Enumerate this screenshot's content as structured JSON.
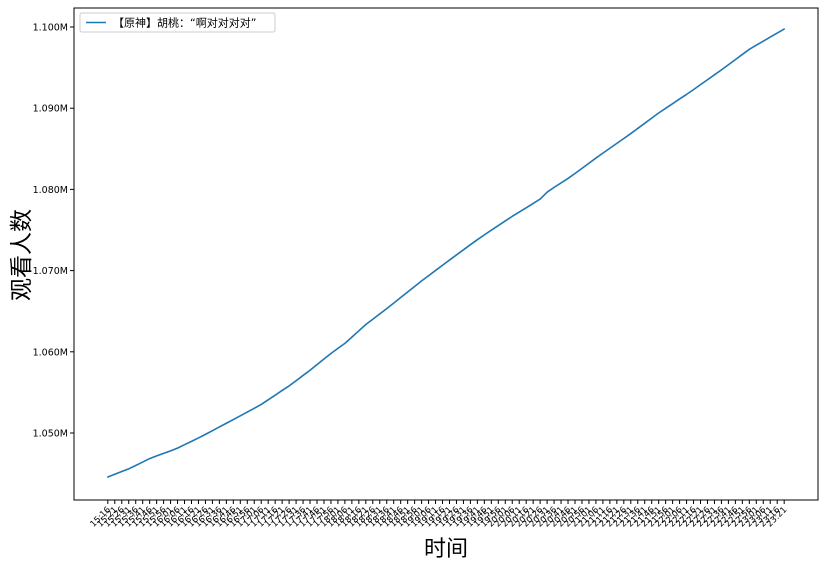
{
  "chart_data": {
    "type": "line",
    "title": "",
    "xlabel": "时间",
    "ylabel": "观看人数",
    "legend_placement": "upper-left",
    "grid": false,
    "ylim": [
      1041750,
      1102340
    ],
    "yticks": [
      1050000,
      1060000,
      1070000,
      1080000,
      1090000,
      1100000
    ],
    "ytick_labels": [
      "1.050M",
      "1.060M",
      "1.070M",
      "1.080M",
      "1.090M",
      "1.100M"
    ],
    "x": [
      "15:16",
      "15:21",
      "15:26",
      "15:31",
      "15:36",
      "15:41",
      "15:46",
      "15:51",
      "15:56",
      "16:01",
      "16:06",
      "16:11",
      "16:16",
      "16:21",
      "16:26",
      "16:31",
      "16:36",
      "16:41",
      "16:46",
      "16:51",
      "16:56",
      "17:01",
      "17:06",
      "17:11",
      "17:16",
      "17:21",
      "17:26",
      "17:31",
      "17:36",
      "17:41",
      "17:46",
      "17:51",
      "17:56",
      "18:01",
      "18:06",
      "18:11",
      "18:16",
      "18:21",
      "18:26",
      "18:31",
      "18:36",
      "18:41",
      "18:46",
      "18:51",
      "18:56",
      "19:01",
      "19:06",
      "19:11",
      "19:16",
      "19:21",
      "19:26",
      "19:31",
      "19:36",
      "19:41",
      "19:46",
      "19:51",
      "19:56",
      "20:01",
      "20:06",
      "20:11",
      "20:16",
      "20:21",
      "20:26",
      "20:31",
      "20:36",
      "20:41",
      "20:46",
      "20:51",
      "20:56",
      "21:01",
      "21:06",
      "21:11",
      "21:16",
      "21:21",
      "21:26",
      "21:31",
      "21:36",
      "21:41",
      "21:46",
      "21:51",
      "21:56",
      "22:01",
      "22:06",
      "22:11",
      "22:16",
      "22:21",
      "22:26",
      "22:31",
      "22:36",
      "22:41",
      "22:46",
      "22:51",
      "22:56",
      "23:01",
      "23:06",
      "23:11",
      "23:16",
      "23:21"
    ],
    "series": [
      {
        "name": "【原神】胡桃：“啊对对对对”",
        "color": "#1f77b4",
        "values": [
          1044580,
          1044920,
          1045260,
          1045590,
          1046000,
          1046420,
          1046850,
          1047180,
          1047490,
          1047800,
          1048140,
          1048560,
          1048970,
          1049390,
          1049830,
          1050290,
          1050750,
          1051200,
          1051660,
          1052120,
          1052580,
          1053040,
          1053520,
          1054090,
          1054660,
          1055240,
          1055800,
          1056440,
          1057090,
          1057730,
          1058420,
          1059110,
          1059790,
          1060420,
          1061040,
          1061810,
          1062590,
          1063360,
          1064010,
          1064670,
          1065320,
          1065990,
          1066680,
          1067360,
          1068050,
          1068730,
          1069370,
          1070020,
          1070660,
          1071300,
          1071930,
          1072560,
          1073190,
          1073810,
          1074400,
          1074980,
          1075550,
          1076120,
          1076680,
          1077210,
          1077740,
          1078270,
          1078810,
          1079660,
          1080250,
          1080800,
          1081350,
          1081960,
          1082590,
          1083220,
          1083860,
          1084470,
          1085070,
          1085670,
          1086270,
          1086880,
          1087510,
          1088140,
          1088780,
          1089410,
          1089990,
          1090560,
          1091140,
          1091700,
          1092290,
          1092900,
          1093500,
          1094110,
          1094720,
          1095350,
          1095980,
          1096620,
          1097250,
          1097760,
          1098260,
          1098760,
          1099260,
          1099750
        ]
      }
    ]
  }
}
